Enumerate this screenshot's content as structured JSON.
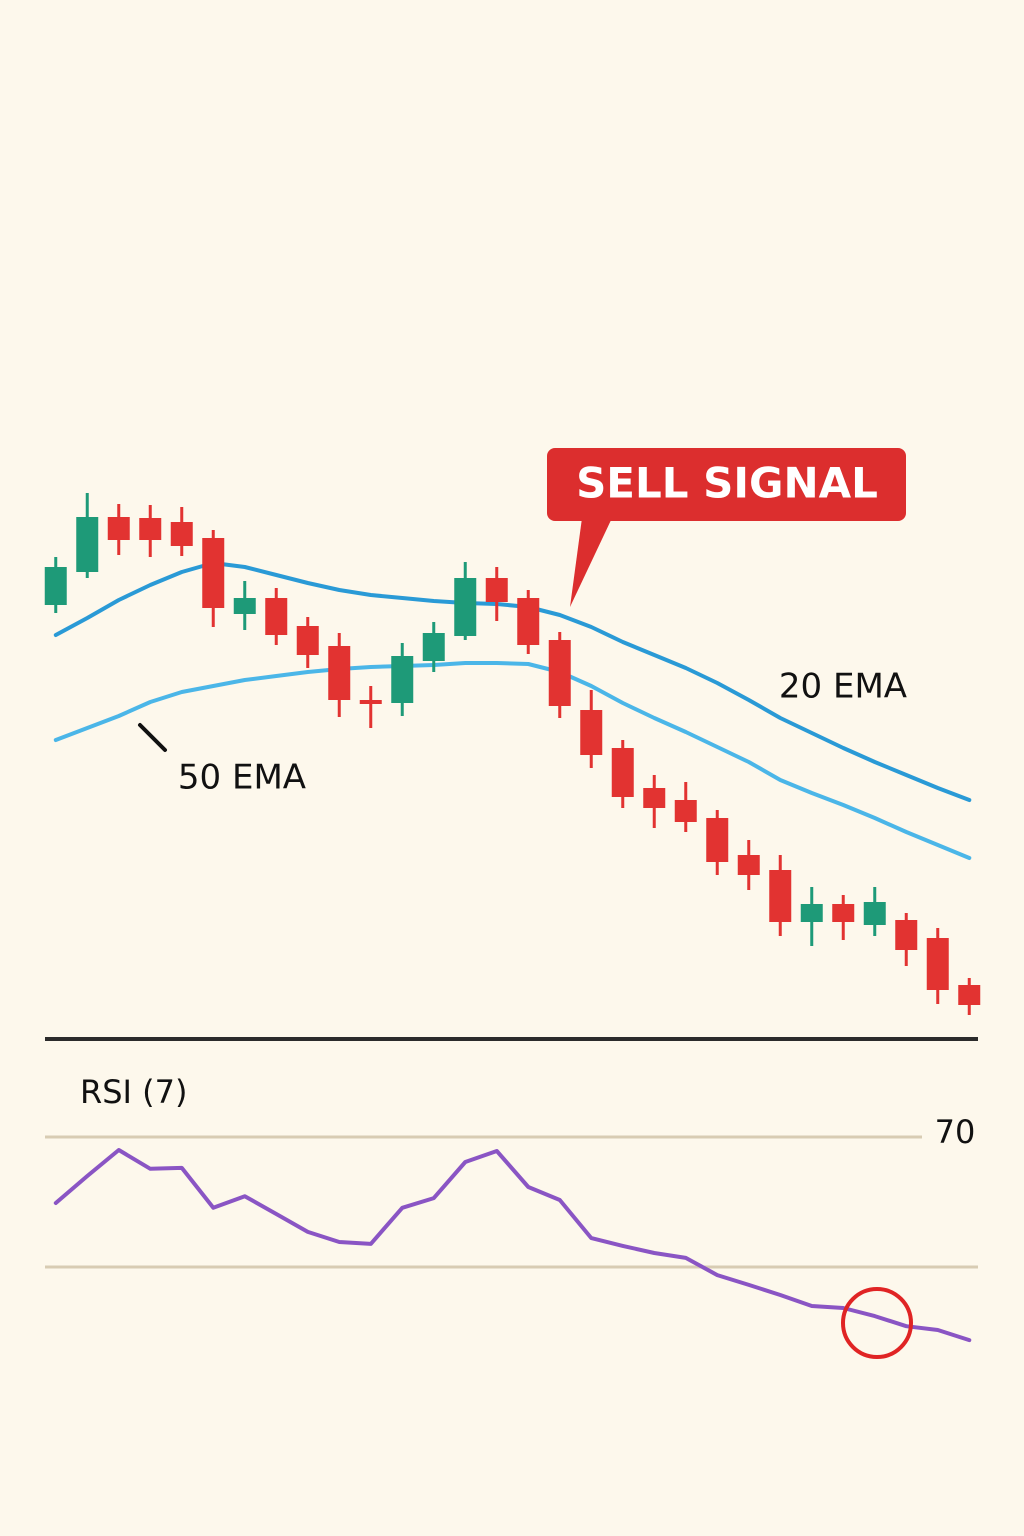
{
  "chart_data": [
    {
      "type": "candlestick",
      "open": [
        83,
        89.6,
        100.6,
        100.4,
        99.6,
        96.4,
        81.2,
        84.4,
        78.8,
        74.8,
        64,
        63.4,
        71.8,
        76.8,
        88.4,
        84.4,
        76,
        62,
        54.4,
        46.4,
        44,
        40.4,
        33,
        30,
        19.6,
        23.2,
        19,
        20,
        16.4,
        7
      ],
      "high": [
        92.6,
        105.4,
        103.2,
        103,
        102.6,
        98,
        87.8,
        86.4,
        80.6,
        77.4,
        66.8,
        75.4,
        79.6,
        91.6,
        90.6,
        86,
        77.6,
        66,
        56,
        49,
        47.6,
        42,
        36,
        33,
        26.6,
        25,
        26.6,
        21.4,
        18.4,
        8.4
      ],
      "low": [
        81.4,
        88.4,
        93,
        92.6,
        92.8,
        78.6,
        78,
        75,
        70.4,
        60.6,
        58.4,
        60.8,
        69.6,
        76,
        79.8,
        73.2,
        60.4,
        50.4,
        42.4,
        38.4,
        37.6,
        29,
        26,
        16.8,
        14.8,
        16,
        16.8,
        10.8,
        3.2,
        1
      ],
      "close": [
        90.6,
        100.6,
        96,
        96,
        94.8,
        82.4,
        84.4,
        77,
        73,
        64,
        63.2,
        72.8,
        77.4,
        88.4,
        83.6,
        75,
        62.8,
        53,
        44.6,
        42.4,
        39.6,
        31.6,
        29,
        19.6,
        23.2,
        19.6,
        23.6,
        14,
        6,
        3
      ],
      "up_color": "#1e9a78",
      "down_color": "#e23331",
      "series": [
        {
          "name": "20 EMA",
          "color": "#2a9ad6",
          "values": [
            77,
            80.4,
            84,
            87,
            89.6,
            91.4,
            90.6,
            89,
            87.4,
            86,
            85,
            84.4,
            83.8,
            83.4,
            83.2,
            82.6,
            81,
            78.6,
            75.6,
            73,
            70.4,
            67.4,
            64,
            60.4,
            57.4,
            54.4,
            51.6,
            49,
            46.4,
            44
          ]
        },
        {
          "name": "50 EMA",
          "color": "#4bb6e8",
          "values": [
            56,
            58.4,
            60.8,
            63.6,
            65.6,
            66.8,
            68,
            68.8,
            69.6,
            70.2,
            70.6,
            70.8,
            71,
            71.4,
            71.4,
            71.2,
            69.6,
            66.8,
            63.4,
            60.4,
            57.6,
            54.6,
            51.6,
            48,
            45.4,
            43,
            40.4,
            37.6,
            35,
            32.4
          ]
        }
      ],
      "ylim": [
        0,
        110
      ],
      "annotation": "SELL SIGNAL"
    },
    {
      "type": "line",
      "title": "RSI (7)",
      "color": "#8a55c4",
      "values": [
        49.7,
        58,
        66,
        60.2,
        60.5,
        48.2,
        51.8,
        46.3,
        40.8,
        37.7,
        37.1,
        48.2,
        51.2,
        62.3,
        65.7,
        54.6,
        50.6,
        38.9,
        36.5,
        34.3,
        32.8,
        27.5,
        24.5,
        21.4,
        18,
        17.4,
        14.9,
        11.8,
        10.6,
        7.5
      ],
      "ylim": [
        0,
        80
      ],
      "levels": [
        70,
        30
      ],
      "level_color": "#d8ccb3"
    }
  ]
}
